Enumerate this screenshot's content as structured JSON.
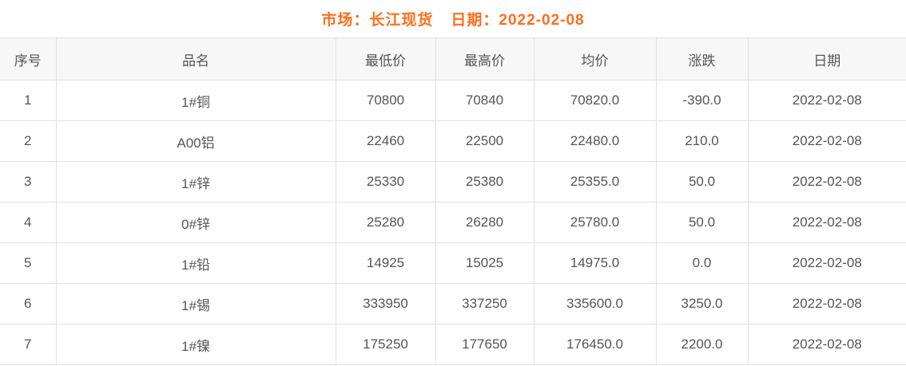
{
  "header": {
    "market": "市场：长江现货",
    "date": "日期：2022-02-08"
  },
  "table": {
    "columns": [
      "序号",
      "品名",
      "最低价",
      "最高价",
      "均价",
      "涨跌",
      "日期"
    ],
    "rows": [
      {
        "no": "1",
        "name": "1#铜",
        "low": "70800",
        "high": "70840",
        "avg": "70820.0",
        "change": "-390.0",
        "change_dir": "down",
        "date": "2022-02-08"
      },
      {
        "no": "2",
        "name": "A00铝",
        "low": "22460",
        "high": "22500",
        "avg": "22480.0",
        "change": "210.0",
        "change_dir": "up",
        "date": "2022-02-08"
      },
      {
        "no": "3",
        "name": "1#锌",
        "low": "25330",
        "high": "25380",
        "avg": "25355.0",
        "change": "50.0",
        "change_dir": "up",
        "date": "2022-02-08"
      },
      {
        "no": "4",
        "name": "0#锌",
        "low": "25280",
        "high": "26280",
        "avg": "25780.0",
        "change": "50.0",
        "change_dir": "up",
        "date": "2022-02-08"
      },
      {
        "no": "5",
        "name": "1#铅",
        "low": "14925",
        "high": "15025",
        "avg": "14975.0",
        "change": "0.0",
        "change_dir": "flat",
        "date": "2022-02-08"
      },
      {
        "no": "6",
        "name": "1#锡",
        "low": "333950",
        "high": "337250",
        "avg": "335600.0",
        "change": "3250.0",
        "change_dir": "up",
        "date": "2022-02-08"
      },
      {
        "no": "7",
        "name": "1#镍",
        "low": "175250",
        "high": "177650",
        "avg": "176450.0",
        "change": "2200.0",
        "change_dir": "up",
        "date": "2022-02-08"
      }
    ]
  },
  "colors": {
    "title_orange": "#ff6d1b",
    "link_blue": "#3087c8",
    "up_red": "#fe0000",
    "down_green": "#008800",
    "flat_gray": "#c8c8c8",
    "text_gray": "#555555",
    "header_bg": "#f7f7f8",
    "border": "#e2e2e2"
  }
}
